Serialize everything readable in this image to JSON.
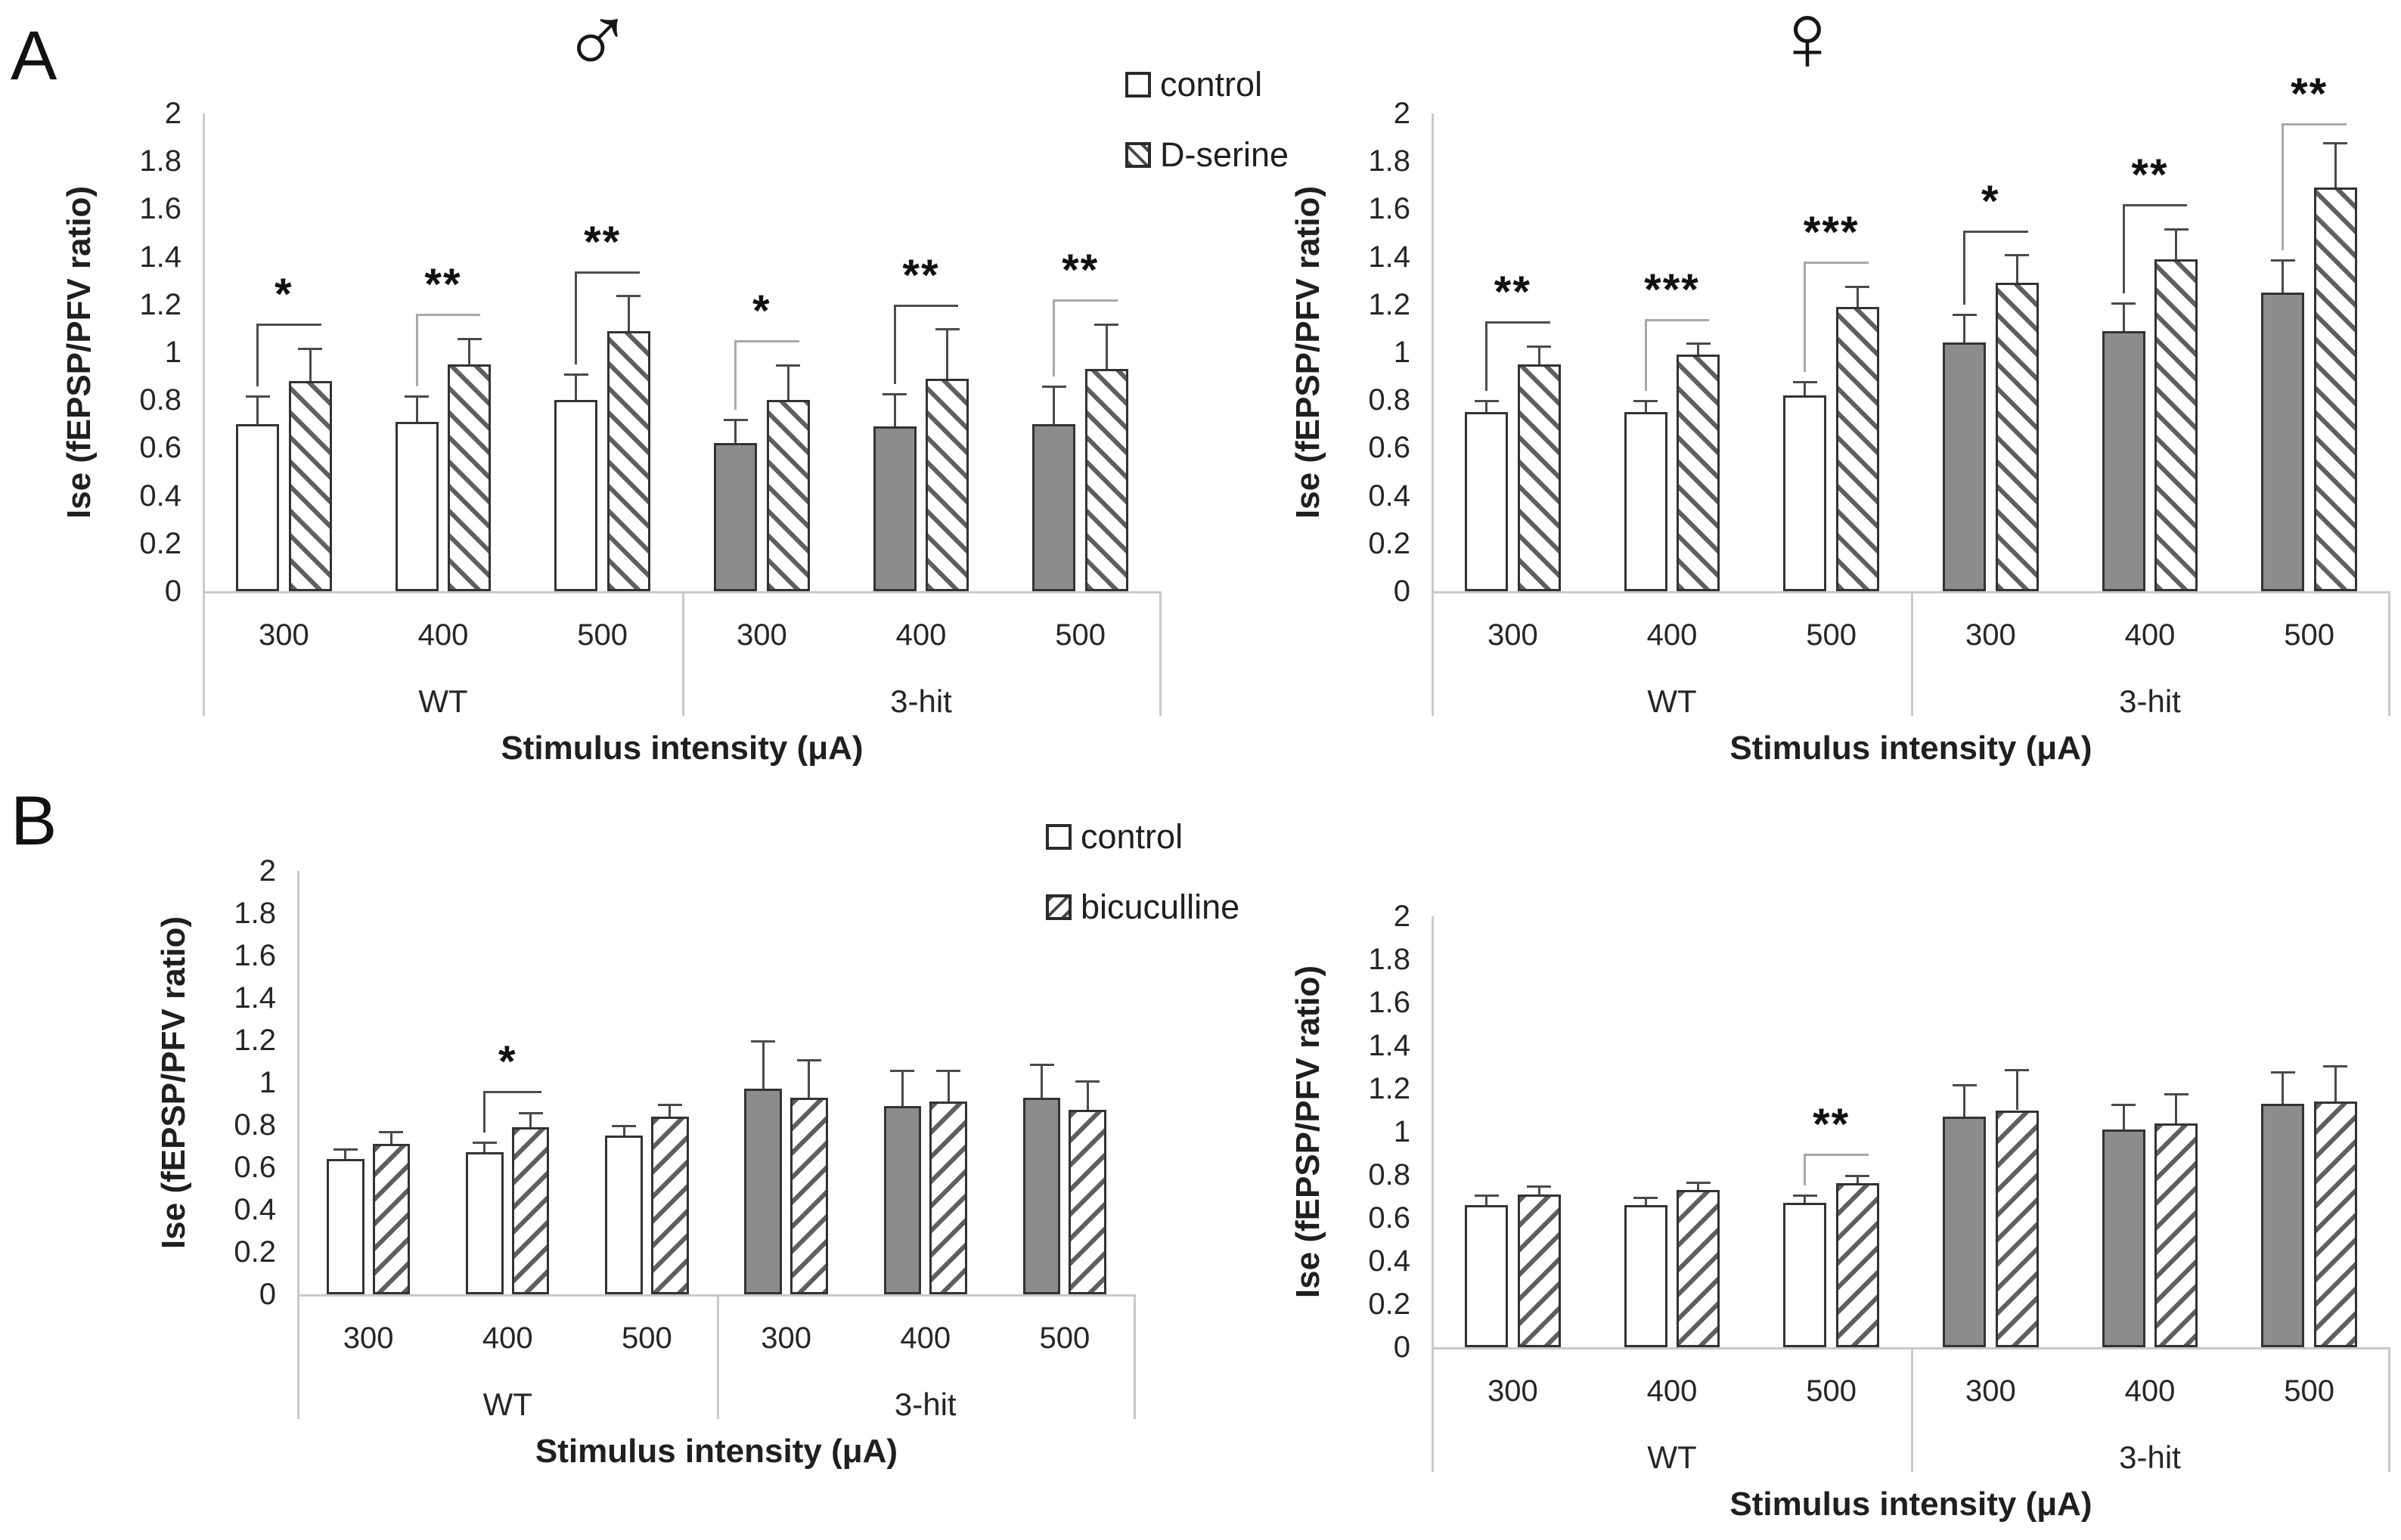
{
  "figure": {
    "panel_a_label": "A",
    "panel_b_label": "B",
    "male_symbol": "♂",
    "female_symbol": "♀"
  },
  "axes": {
    "y_label": "Ise (fEPSP/PFV ratio)",
    "x_label": "Stimulus intensity (μA)",
    "y_max": 2,
    "y_ticks": [
      "2",
      "1.8",
      "1.6",
      "1.4",
      "1.2",
      "1",
      "0.8",
      "0.6",
      "0.4",
      "0.2",
      "0"
    ],
    "category_labels": [
      "300",
      "400",
      "500"
    ],
    "group_labels": [
      "WT",
      "3-hit"
    ]
  },
  "legend_a": {
    "items": [
      {
        "label": "control",
        "pattern": "plain"
      },
      {
        "label": "D-serine",
        "pattern": "hatch-forward"
      }
    ]
  },
  "legend_b": {
    "items": [
      {
        "label": "control",
        "pattern": "plain"
      },
      {
        "label": "bicuculline",
        "pattern": "hatch-backward"
      }
    ]
  },
  "colors": {
    "bar_border": "#333333",
    "gray_fill": "#8c8c8c",
    "hatch_stroke": "#5f5f5f",
    "axis_line": "#c9c9c9",
    "error_bar": "#4a4a4a",
    "bracket_dark": "#4d4d4d",
    "bracket_light": "#a9a9a9",
    "text": "#1f1f1f"
  },
  "chart_data": [
    {
      "id": "A-male",
      "type": "bar",
      "panel": "A",
      "title": "♂ (males, D-serine)",
      "ylabel": "Ise (fEPSP/PFV ratio)",
      "xlabel": "Stimulus intensity (μA)",
      "ylim": [
        0,
        2
      ],
      "categories": [
        "WT 300",
        "WT 400",
        "WT 500",
        "3-hit 300",
        "3-hit 400",
        "3-hit 500"
      ],
      "series": [
        {
          "name": "control",
          "values": [
            0.7,
            0.71,
            0.8,
            0.62,
            0.69,
            0.7
          ],
          "errors": [
            0.12,
            0.11,
            0.11,
            0.1,
            0.14,
            0.16
          ]
        },
        {
          "name": "D-serine",
          "values": [
            0.88,
            0.95,
            1.09,
            0.8,
            0.89,
            0.93
          ],
          "errors": [
            0.14,
            0.11,
            0.15,
            0.15,
            0.21,
            0.19
          ]
        }
      ],
      "significance": [
        "*",
        "**",
        "**",
        "*",
        "**",
        "**"
      ],
      "significance_shade": [
        "dark",
        "light",
        "dark",
        "light",
        "dark",
        "light"
      ]
    },
    {
      "id": "A-female",
      "type": "bar",
      "panel": "A",
      "title": "♀ (females, D-serine)",
      "ylabel": "Ise (fEPSP/PFV ratio)",
      "xlabel": "Stimulus intensity (μA)",
      "ylim": [
        0,
        2
      ],
      "categories": [
        "WT 300",
        "WT 400",
        "WT 500",
        "3-hit 300",
        "3-hit 400",
        "3-hit 500"
      ],
      "series": [
        {
          "name": "control",
          "values": [
            0.75,
            0.75,
            0.82,
            1.04,
            1.09,
            1.25
          ],
          "errors": [
            0.05,
            0.05,
            0.06,
            0.12,
            0.12,
            0.14
          ]
        },
        {
          "name": "D-serine",
          "values": [
            0.95,
            0.99,
            1.19,
            1.29,
            1.39,
            1.69
          ],
          "errors": [
            0.08,
            0.05,
            0.09,
            0.12,
            0.13,
            0.19
          ]
        }
      ],
      "significance": [
        "**",
        "***",
        "***",
        "*",
        "**",
        "**"
      ],
      "significance_shade": [
        "dark",
        "light",
        "light",
        "dark",
        "dark",
        "light"
      ]
    },
    {
      "id": "B-male",
      "type": "bar",
      "panel": "B",
      "title": "♂ (males, bicuculline)",
      "ylabel": "Ise (fEPSP/PFV ratio)",
      "xlabel": "Stimulus intensity (μA)",
      "ylim": [
        0,
        2
      ],
      "categories": [
        "WT 300",
        "WT 400",
        "WT 500",
        "3-hit 300",
        "3-hit 400",
        "3-hit 500"
      ],
      "series": [
        {
          "name": "control",
          "values": [
            0.64,
            0.67,
            0.75,
            0.97,
            0.89,
            0.93
          ],
          "errors": [
            0.05,
            0.05,
            0.05,
            0.23,
            0.17,
            0.16
          ]
        },
        {
          "name": "bicuculline",
          "values": [
            0.71,
            0.79,
            0.84,
            0.93,
            0.91,
            0.87
          ],
          "errors": [
            0.06,
            0.07,
            0.06,
            0.18,
            0.15,
            0.14
          ]
        }
      ],
      "significance": [
        null,
        "*",
        null,
        null,
        null,
        null
      ],
      "significance_shade": [
        null,
        "dark",
        null,
        null,
        null,
        null
      ]
    },
    {
      "id": "B-female",
      "type": "bar",
      "panel": "B",
      "title": "♀ (females, bicuculline)",
      "ylabel": "Ise (fEPSP/PFV ratio)",
      "xlabel": "Stimulus intensity (μA)",
      "ylim": [
        0,
        2
      ],
      "categories": [
        "WT 300",
        "WT 400",
        "WT 500",
        "3-hit 300",
        "3-hit 400",
        "3-hit 500"
      ],
      "series": [
        {
          "name": "control",
          "values": [
            0.66,
            0.66,
            0.67,
            1.07,
            1.01,
            1.13
          ],
          "errors": [
            0.05,
            0.04,
            0.04,
            0.15,
            0.12,
            0.15
          ]
        },
        {
          "name": "bicuculline",
          "values": [
            0.71,
            0.73,
            0.76,
            1.1,
            1.04,
            1.14
          ],
          "errors": [
            0.04,
            0.04,
            0.04,
            0.19,
            0.14,
            0.17
          ]
        }
      ],
      "significance": [
        null,
        null,
        "**",
        null,
        null,
        null
      ],
      "significance_shade": [
        null,
        null,
        "light",
        null,
        null,
        null
      ]
    }
  ]
}
